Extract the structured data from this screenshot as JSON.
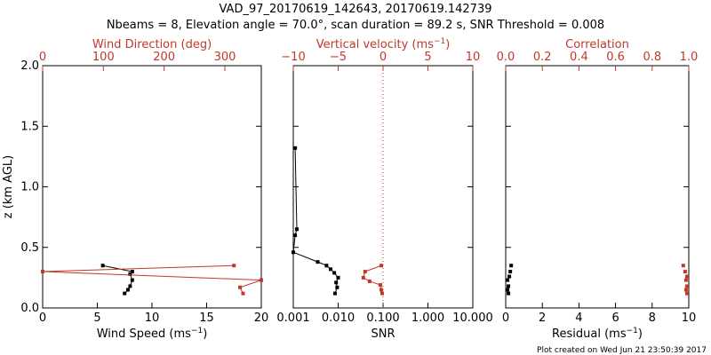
{
  "header": {
    "title": "VAD_97_20170619_142643, 20170619.142739",
    "subtitle": "Nbeams = 8, Elevation angle = 70.0°, scan duration = 89.2 s, SNR Threshold = 0.008"
  },
  "footer": {
    "credit": "Plot created on Wed Jun 21 23:50:39 2017"
  },
  "colors": {
    "primary": "#000000",
    "secondary": "#c0392b"
  },
  "chart_data": [
    {
      "type": "line",
      "panel": "left",
      "ylabel": "z (km AGL)",
      "ylim": [
        0,
        2
      ],
      "yticks": [
        {
          "v": 0.0,
          "label": "0.0"
        },
        {
          "v": 0.5,
          "label": "0.5"
        },
        {
          "v": 1.0,
          "label": "1.0"
        },
        {
          "v": 1.5,
          "label": "1.5"
        },
        {
          "v": 2.0,
          "label": "2.0"
        }
      ],
      "bottom_axis": {
        "label": "Wind Speed (ms",
        "label_sup": "−1",
        "label_end": ")",
        "lim": [
          0,
          20
        ],
        "ticks": [
          {
            "v": 0,
            "label": "0"
          },
          {
            "v": 5,
            "label": "5"
          },
          {
            "v": 10,
            "label": "10"
          },
          {
            "v": 15,
            "label": "15"
          },
          {
            "v": 20,
            "label": "20"
          }
        ]
      },
      "top_axis": {
        "label": "Wind Direction (deg)",
        "lim": [
          0,
          360
        ],
        "ticks": [
          {
            "v": 0,
            "label": "0"
          },
          {
            "v": 100,
            "label": "100"
          },
          {
            "v": 200,
            "label": "200"
          },
          {
            "v": 300,
            "label": "300"
          }
        ]
      },
      "series": [
        {
          "name": "Wind Speed",
          "axis": "bottom",
          "color": "#000000",
          "x": [
            7.5,
            7.8,
            8.0,
            8.2,
            8.0,
            8.2,
            5.5
          ],
          "y": [
            0.12,
            0.15,
            0.18,
            0.23,
            0.28,
            0.3,
            0.35
          ]
        },
        {
          "name": "Wind Direction",
          "axis": "top",
          "color": "#c0392b",
          "x": [
            330,
            325,
            360,
            0,
            360,
            0,
            315
          ],
          "y": [
            0.12,
            0.17,
            0.23,
            0.3,
            0.23,
            0.3,
            0.35
          ],
          "note": "direction wraps 360↔0"
        }
      ]
    },
    {
      "type": "line",
      "panel": "middle",
      "ylim": [
        0,
        2
      ],
      "bottom_axis": {
        "label": "SNR",
        "scale": "log",
        "lim": [
          0.001,
          10
        ],
        "ticks": [
          {
            "v": 0.001,
            "label": "0.001"
          },
          {
            "v": 0.01,
            "label": "0.010"
          },
          {
            "v": 0.1,
            "label": "0.100"
          },
          {
            "v": 1,
            "label": "1.000"
          },
          {
            "v": 10,
            "label": "10.000"
          }
        ]
      },
      "top_axis": {
        "label": "Vertical velocity (ms",
        "label_sup": "−1",
        "label_end": ")",
        "lim": [
          -10,
          10
        ],
        "ticks": [
          {
            "v": -10,
            "label": "−10"
          },
          {
            "v": -5,
            "label": "−5"
          },
          {
            "v": 0,
            "label": "0"
          },
          {
            "v": 5,
            "label": "5"
          },
          {
            "v": 10,
            "label": "10"
          }
        ]
      },
      "reference_line": {
        "axis": "top",
        "value": 0,
        "style": "dotted"
      },
      "series": [
        {
          "name": "SNR",
          "axis": "bottom",
          "color": "#000000",
          "x": [
            0.0011,
            0.0012,
            0.0011,
            0.001,
            0.0035,
            0.0055,
            0.0068,
            0.0082,
            0.01,
            0.009,
            0.0095,
            0.0085
          ],
          "y": [
            1.32,
            0.65,
            0.6,
            0.46,
            0.38,
            0.35,
            0.32,
            0.29,
            0.25,
            0.21,
            0.17,
            0.12
          ]
        },
        {
          "name": "Vertical velocity",
          "axis": "top",
          "color": "#c0392b",
          "x": [
            -0.2,
            -2.0,
            -2.2,
            -1.5,
            -0.3,
            -0.2,
            -0.1
          ],
          "y": [
            0.35,
            0.3,
            0.25,
            0.22,
            0.19,
            0.15,
            0.12
          ]
        }
      ]
    },
    {
      "type": "scatter",
      "panel": "right",
      "ylim": [
        0,
        2
      ],
      "bottom_axis": {
        "label": "Residual (ms",
        "label_sup": "−1",
        "label_end": ")",
        "lim": [
          0,
          10
        ],
        "ticks": [
          {
            "v": 0,
            "label": "0"
          },
          {
            "v": 2,
            "label": "2"
          },
          {
            "v": 4,
            "label": "4"
          },
          {
            "v": 6,
            "label": "6"
          },
          {
            "v": 8,
            "label": "8"
          },
          {
            "v": 10,
            "label": "10"
          }
        ]
      },
      "top_axis": {
        "label": "Correlation",
        "lim": [
          0,
          1
        ],
        "ticks": [
          {
            "v": 0,
            "label": "0.0"
          },
          {
            "v": 0.2,
            "label": "0.2"
          },
          {
            "v": 0.4,
            "label": "0.4"
          },
          {
            "v": 0.6,
            "label": "0.6"
          },
          {
            "v": 0.8,
            "label": "0.8"
          },
          {
            "v": 1.0,
            "label": "1.0"
          }
        ]
      },
      "series": [
        {
          "name": "Residual",
          "axis": "bottom",
          "color": "#000000",
          "x": [
            0.3,
            0.25,
            0.2,
            0.1,
            0.15,
            0.1,
            0.15
          ],
          "y": [
            0.35,
            0.3,
            0.26,
            0.23,
            0.18,
            0.15,
            0.12
          ]
        },
        {
          "name": "Correlation",
          "axis": "top",
          "color": "#c0392b",
          "x": [
            0.97,
            0.98,
            0.99,
            0.985,
            0.99,
            0.985,
            0.99
          ],
          "y": [
            0.35,
            0.3,
            0.26,
            0.23,
            0.18,
            0.15,
            0.12
          ]
        }
      ]
    }
  ]
}
